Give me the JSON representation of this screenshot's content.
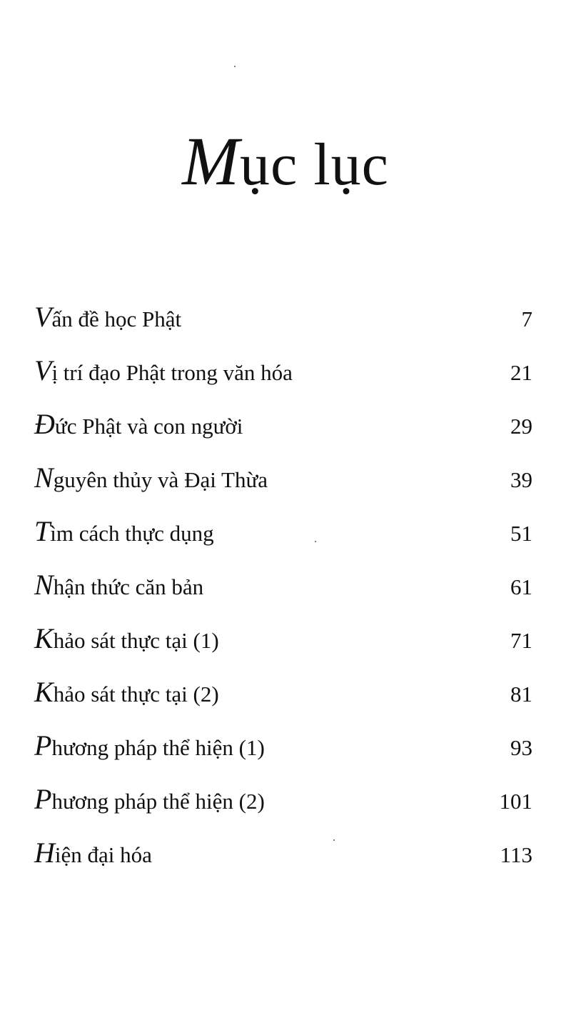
{
  "title": "Mục lục",
  "entries": [
    {
      "title": "Vấn đề học Phật",
      "page": "7"
    },
    {
      "title": "Vị trí đạo Phật trong văn hóa",
      "page": "21"
    },
    {
      "title": "Đức Phật và con người",
      "page": "29"
    },
    {
      "title": "Nguyên thủy và Đại Thừa",
      "page": "39"
    },
    {
      "title": "Tìm cách thực dụng",
      "page": "51"
    },
    {
      "title": "Nhận thức căn bản",
      "page": "61"
    },
    {
      "title": "Khảo sát thực tại (1)",
      "page": "71"
    },
    {
      "title": "Khảo sát thực tại (2)",
      "page": "81"
    },
    {
      "title": "Phương pháp thể hiện (1)",
      "page": "93"
    },
    {
      "title": "Phương pháp thể hiện (2)",
      "page": "101"
    },
    {
      "title": "Hiện đại hóa",
      "page": "113"
    }
  ]
}
